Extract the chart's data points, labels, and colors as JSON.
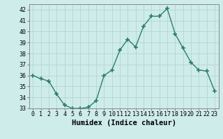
{
  "x": [
    0,
    1,
    2,
    3,
    4,
    5,
    6,
    7,
    8,
    9,
    10,
    11,
    12,
    13,
    14,
    15,
    16,
    17,
    18,
    19,
    20,
    21,
    22,
    23
  ],
  "y": [
    36.0,
    35.7,
    35.5,
    34.3,
    33.3,
    33.0,
    33.0,
    33.1,
    33.7,
    36.0,
    36.5,
    38.3,
    39.3,
    38.6,
    40.5,
    41.4,
    41.4,
    42.1,
    39.8,
    38.5,
    37.2,
    36.5,
    36.4,
    34.6
  ],
  "line_color": "#2d7d6e",
  "marker": "+",
  "marker_size": 4,
  "marker_lw": 1.2,
  "bg_color": "#ceecea",
  "grid_color": "#b8d8d5",
  "xlabel": "Humidex (Indice chaleur)",
  "xlim": [
    -0.5,
    23.5
  ],
  "ylim": [
    33,
    42.5
  ],
  "yticks": [
    33,
    34,
    35,
    36,
    37,
    38,
    39,
    40,
    41,
    42
  ],
  "xtick_labels": [
    "0",
    "1",
    "2",
    "3",
    "4",
    "5",
    "6",
    "7",
    "8",
    "9",
    "10",
    "11",
    "12",
    "13",
    "14",
    "15",
    "16",
    "17",
    "18",
    "19",
    "20",
    "21",
    "22",
    "23"
  ],
  "label_fontsize": 7.5,
  "tick_fontsize": 6.0
}
